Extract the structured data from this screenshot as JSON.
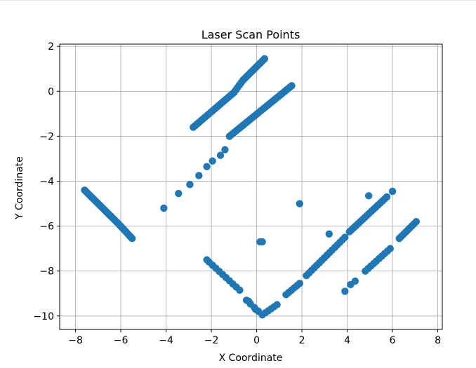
{
  "chart_data": {
    "type": "scatter",
    "title": "Laser Scan Points",
    "xlabel": "X Coordinate",
    "ylabel": "Y Coordinate",
    "xlim": [
      -8.7,
      8.2
    ],
    "ylim": [
      -10.6,
      2.1
    ],
    "xticks": [
      -8,
      -6,
      -4,
      -2,
      0,
      2,
      4,
      6,
      8
    ],
    "yticks": [
      -10,
      -8,
      -6,
      -4,
      -2,
      0,
      2
    ],
    "grid": true,
    "marker_color": "#1f77b4",
    "segments": [
      {
        "from": [
          -2.8,
          -1.6
        ],
        "to": [
          -1.0,
          -0.05
        ],
        "n": 22
      },
      {
        "from": [
          -1.0,
          -0.05
        ],
        "to": [
          -0.6,
          0.5
        ],
        "n": 6
      },
      {
        "from": [
          -0.6,
          0.5
        ],
        "to": [
          0.35,
          1.45
        ],
        "n": 16
      },
      {
        "from": [
          -1.2,
          -2.0
        ],
        "to": [
          1.55,
          0.25
        ],
        "n": 36
      },
      {
        "from": [
          -7.6,
          -4.4
        ],
        "to": [
          -6.1,
          -5.9
        ],
        "n": 26
      },
      {
        "from": [
          -6.1,
          -5.9
        ],
        "to": [
          -5.5,
          -6.55
        ],
        "n": 12
      },
      {
        "from": [
          -2.1,
          -7.6
        ],
        "to": [
          -0.75,
          -8.85
        ],
        "n": 10
      },
      {
        "from": [
          -0.45,
          -9.3
        ],
        "to": [
          0.25,
          -9.95
        ],
        "n": 5
      },
      {
        "from": [
          0.25,
          -9.95
        ],
        "to": [
          0.9,
          -9.5
        ],
        "n": 6
      },
      {
        "from": [
          1.3,
          -9.05
        ],
        "to": [
          1.9,
          -8.55
        ],
        "n": 6
      },
      {
        "from": [
          2.2,
          -8.2
        ],
        "to": [
          3.9,
          -6.5
        ],
        "n": 16
      },
      {
        "from": [
          4.1,
          -6.25
        ],
        "to": [
          5.75,
          -4.7
        ],
        "n": 18
      },
      {
        "from": [
          4.8,
          -8.0
        ],
        "to": [
          5.9,
          -7.0
        ],
        "n": 10
      },
      {
        "from": [
          6.3,
          -6.55
        ],
        "to": [
          7.05,
          -5.8
        ],
        "n": 9
      }
    ],
    "points": [
      [
        -4.1,
        -5.2
      ],
      [
        -3.45,
        -4.55
      ],
      [
        -2.95,
        -4.15
      ],
      [
        -2.55,
        -3.75
      ],
      [
        -2.2,
        -3.35
      ],
      [
        -1.95,
        -3.1
      ],
      [
        -1.6,
        -2.85
      ],
      [
        -1.4,
        -2.6
      ],
      [
        -2.2,
        -7.5
      ],
      [
        0.15,
        -6.7
      ],
      [
        0.25,
        -6.7
      ],
      [
        1.9,
        -5.0
      ],
      [
        3.2,
        -6.35
      ],
      [
        4.95,
        -4.65
      ],
      [
        6.0,
        -4.45
      ],
      [
        3.9,
        -8.9
      ],
      [
        4.15,
        -8.6
      ],
      [
        4.35,
        -8.45
      ],
      [
        -0.35,
        -9.35
      ],
      [
        -0.05,
        -9.7
      ]
    ]
  }
}
